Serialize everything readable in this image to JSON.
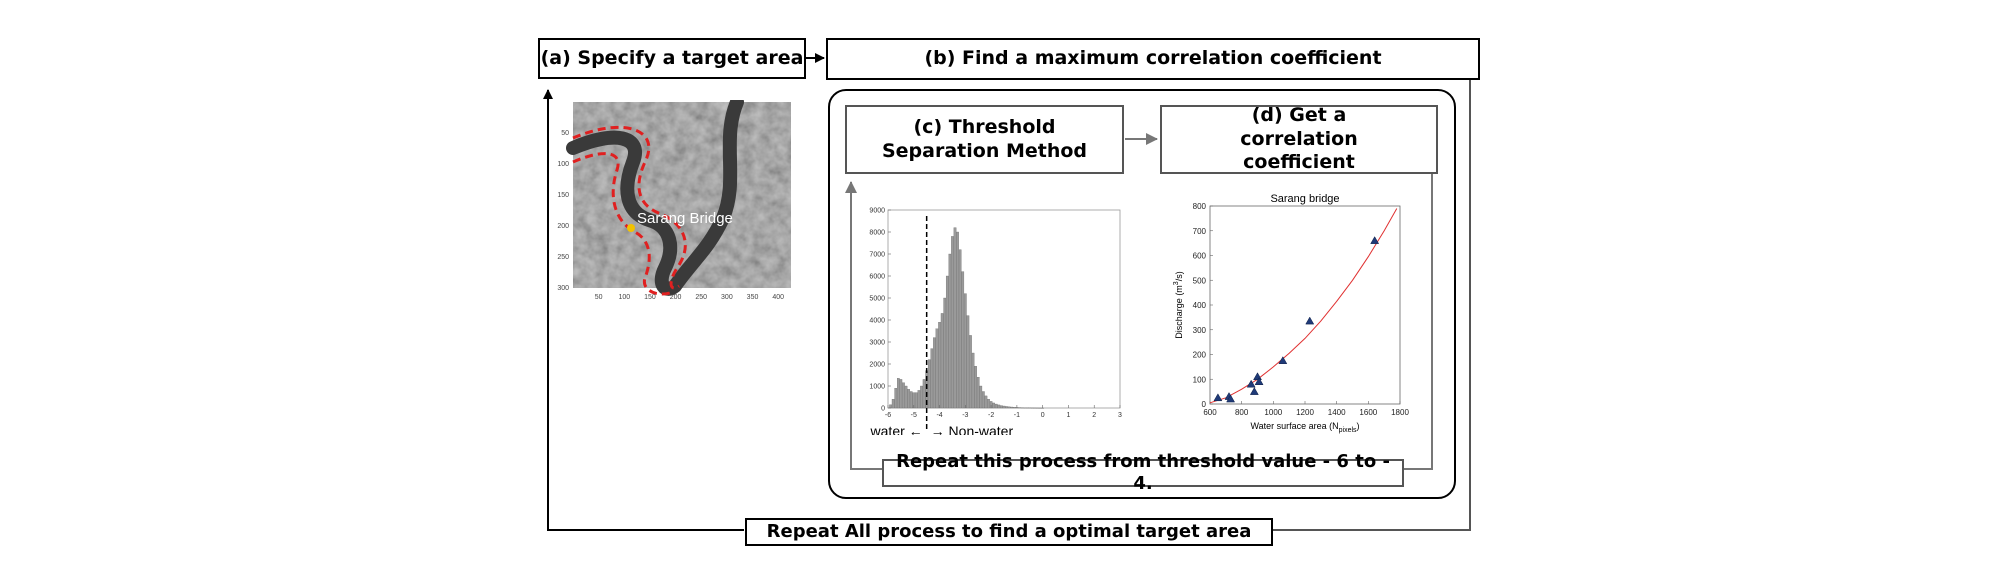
{
  "steps": {
    "a": "(a) Specify a target area",
    "b": "(b) Find a maximum correlation coefficient",
    "c": "(c) Threshold Separation Method",
    "d": "(d) Get a correlation coefficient",
    "repeat_inner": "Repeat this process from threshold value - 6 to - 4.",
    "repeat_outer": "Repeat All process to find a optimal target area"
  },
  "map": {
    "label": "Sarang Bridge",
    "x_ticks": [
      "50",
      "100",
      "150",
      "200",
      "250",
      "300",
      "350",
      "400"
    ],
    "y_ticks": [
      "50",
      "100",
      "150",
      "200",
      "250",
      "300"
    ]
  },
  "histogram": {
    "water_label": "water ←",
    "nonwater_label": "→ Non-water",
    "threshold": -4.5
  },
  "colors": {
    "outline": "#e02020",
    "bridge": "#f2c200",
    "hist_bar": "#9a9a9a",
    "fit": "#e03030",
    "points": "#1f3a78"
  },
  "chart_data": [
    {
      "type": "bar",
      "title": "",
      "xlabel": "",
      "ylabel": "",
      "xlim": [
        -6,
        3
      ],
      "ylim": [
        0,
        9000
      ],
      "x_ticks": [
        "-6",
        "-5",
        "-4",
        "-3",
        "-2",
        "-1",
        "0",
        "1",
        "2",
        "3"
      ],
      "y_ticks": [
        "0",
        "1000",
        "2000",
        "3000",
        "4000",
        "5000",
        "6000",
        "7000",
        "8000",
        "9000"
      ],
      "x": [
        -5.9,
        -5.8,
        -5.7,
        -5.6,
        -5.5,
        -5.4,
        -5.3,
        -5.2,
        -5.1,
        -5.0,
        -4.9,
        -4.8,
        -4.7,
        -4.6,
        -4.5,
        -4.4,
        -4.3,
        -4.2,
        -4.1,
        -4.0,
        -3.9,
        -3.8,
        -3.7,
        -3.6,
        -3.5,
        -3.4,
        -3.3,
        -3.2,
        -3.1,
        -3.0,
        -2.9,
        -2.8,
        -2.7,
        -2.6,
        -2.5,
        -2.4,
        -2.3,
        -2.2,
        -2.1,
        -2.0,
        -1.9,
        -1.8,
        -1.7,
        -1.6,
        -1.5,
        -1.4,
        -1.3,
        -1.2,
        -1.1,
        -1.0,
        -0.9,
        -0.8,
        -0.7,
        -0.6,
        -0.5,
        -0.4,
        -0.3,
        -0.2,
        -0.1,
        0.0
      ],
      "values": [
        150,
        400,
        900,
        1350,
        1300,
        1150,
        1000,
        850,
        750,
        700,
        700,
        800,
        1000,
        1300,
        1700,
        2200,
        2700,
        3200,
        3600,
        3900,
        4300,
        5000,
        6000,
        7000,
        7800,
        8200,
        8000,
        7200,
        6200,
        5200,
        4200,
        3300,
        2500,
        1900,
        1400,
        1000,
        750,
        550,
        400,
        300,
        230,
        180,
        140,
        110,
        90,
        70,
        55,
        45,
        35,
        28,
        22,
        18,
        14,
        10,
        8,
        6,
        5,
        4,
        3,
        2
      ]
    },
    {
      "type": "scatter",
      "title": "Sarang bridge",
      "xlabel": "Water surface area (N",
      "xlabel_sub": "pixels",
      "xlabel_end": ")",
      "ylabel": "Discharge (m",
      "ylabel_sup": "3",
      "ylabel_end": "/s)",
      "xlim": [
        600,
        1800
      ],
      "ylim": [
        0,
        800
      ],
      "x_ticks": [
        "600",
        "800",
        "1000",
        "1200",
        "1400",
        "1600",
        "1800"
      ],
      "y_ticks": [
        "0",
        "100",
        "200",
        "300",
        "400",
        "500",
        "600",
        "700",
        "800"
      ],
      "points": [
        {
          "x": 650,
          "y": 25
        },
        {
          "x": 720,
          "y": 30
        },
        {
          "x": 730,
          "y": 20
        },
        {
          "x": 860,
          "y": 80
        },
        {
          "x": 880,
          "y": 50
        },
        {
          "x": 900,
          "y": 110
        },
        {
          "x": 910,
          "y": 90
        },
        {
          "x": 1060,
          "y": 175
        },
        {
          "x": 1230,
          "y": 335
        },
        {
          "x": 1640,
          "y": 660
        }
      ],
      "fit_curve": {
        "x": [
          600,
          700,
          800,
          900,
          1000,
          1100,
          1200,
          1300,
          1400,
          1500,
          1600,
          1700,
          1780
        ],
        "y": [
          5,
          25,
          60,
          100,
          150,
          205,
          265,
          335,
          415,
          500,
          595,
          700,
          790
        ]
      }
    }
  ]
}
